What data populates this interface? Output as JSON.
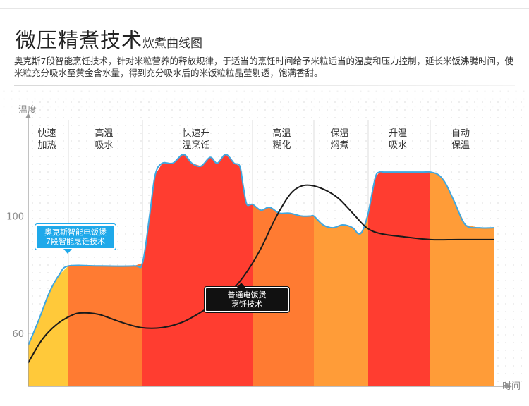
{
  "header": {
    "title_main": "微压精煮技术",
    "title_sub": "炊煮曲线图",
    "description": "奥克斯7段智能烹饪技术，针对米粒营养的释放规律，于适当的烹饪时间给予米粒适当的温度和压力控制，延长米饭沸腾时间，使米粒充分吸水至黄金含水量，得到充分吸水后的米饭粒粒晶莹剔透，饱满香甜。"
  },
  "callouts": {
    "blue": {
      "line1": "奥克斯智能电饭煲",
      "line2": "7段智能烹饪技术"
    },
    "black": {
      "line1": "普通电饭煲",
      "line2": "烹饪技术"
    }
  },
  "chart_data": {
    "type": "area",
    "ylabel": "温度",
    "xlabel": "时间",
    "y_ticks": [
      "100",
      "60"
    ],
    "y_tick_values": [
      100,
      60
    ],
    "ylim": [
      42,
      140
    ],
    "xlim": [
      0,
      660
    ],
    "grid": true,
    "stages": [
      {
        "label_line1": "快速",
        "label_line2": "加热",
        "x_start": 0,
        "x_end": 57,
        "color": "#ffc93a"
      },
      {
        "label_line1": "高温",
        "label_line2": "吸水",
        "x_start": 57,
        "x_end": 162,
        "color": "#ff7b32"
      },
      {
        "label_line1": "快速升",
        "label_line2": "温烹饪",
        "x_start": 162,
        "x_end": 318,
        "color": "#ff3d30"
      },
      {
        "label_line1": "高温",
        "label_line2": "糊化",
        "x_start": 318,
        "x_end": 405,
        "color": "#ff7b32"
      },
      {
        "label_line1": "保温",
        "label_line2": "焖煮",
        "x_start": 405,
        "x_end": 482,
        "color": "#ff9c38"
      },
      {
        "label_line1": "升温",
        "label_line2": "吸水",
        "x_start": 482,
        "x_end": 570,
        "color": "#ff3d30"
      },
      {
        "label_line1": "自动",
        "label_line2": "保温",
        "x_start": 570,
        "x_end": 660,
        "color": "#ff9c38"
      }
    ],
    "series": [
      {
        "name": "奥克斯智能电饭煲 7段智能烹饪技术",
        "color": "#3fa7e0",
        "x": [
          0,
          14,
          30,
          44,
          57,
          100,
          150,
          162,
          172,
          180,
          190,
          205,
          220,
          232,
          245,
          258,
          268,
          280,
          292,
          300,
          305,
          310,
          318,
          330,
          342,
          356,
          370,
          388,
          400,
          405,
          418,
          432,
          446,
          460,
          468,
          474,
          482,
          492,
          498,
          504,
          520,
          560,
          570,
          582,
          592,
          604,
          620,
          640,
          660
        ],
        "y": [
          56,
          64,
          74,
          80,
          83,
          83,
          83,
          84,
          100,
          114,
          118,
          118,
          121,
          118,
          117,
          120,
          118,
          121,
          118,
          117,
          110,
          104,
          104,
          102,
          103,
          101,
          101,
          100,
          100,
          100,
          97,
          96,
          97,
          96,
          94,
          95,
          101,
          113,
          115,
          115,
          115,
          115,
          115,
          114,
          111,
          105,
          97,
          96,
          96
        ]
      },
      {
        "name": "普通电饭煲 烹饪技术",
        "color": "#1a1a1a",
        "x": [
          0,
          20,
          40,
          60,
          75,
          100,
          130,
          160,
          190,
          220,
          250,
          270,
          290,
          310,
          330,
          350,
          370,
          385,
          400,
          420,
          440,
          460,
          480,
          500,
          530,
          570,
          610,
          660
        ],
        "y": [
          50,
          58,
          63,
          66,
          67,
          66.5,
          64,
          62,
          62,
          64,
          68,
          71,
          75,
          81,
          89,
          99,
          107,
          110,
          110.5,
          109,
          106,
          101,
          96,
          94,
          93,
          92,
          92,
          92
        ]
      }
    ]
  }
}
